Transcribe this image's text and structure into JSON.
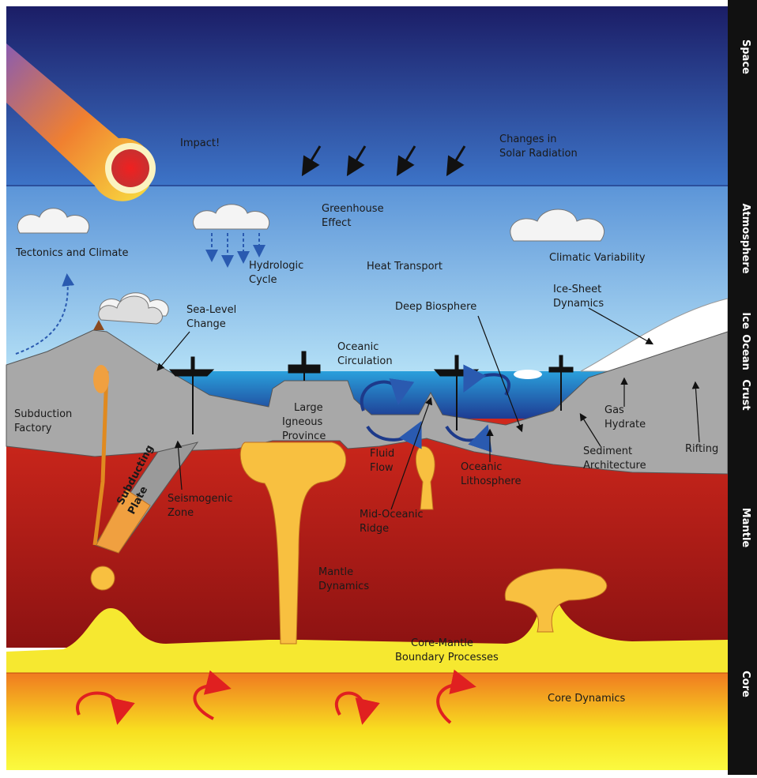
{
  "layers": [
    "Space",
    "Atmosphere",
    "Ice",
    "Ocean",
    "Crust",
    "Mantle",
    "Core"
  ],
  "labels": [
    {
      "lines": [
        "Impact!"
      ]
    },
    {
      "lines": [
        "Changes in",
        "Solar Radiation"
      ]
    },
    {
      "lines": [
        "Greenhouse",
        "Effect"
      ]
    },
    {
      "lines": [
        "Hydrologic",
        "Cycle"
      ]
    },
    {
      "lines": [
        "Tectonics and Climate"
      ]
    },
    {
      "lines": [
        "Heat Transport"
      ]
    },
    {
      "lines": [
        "Climatic Variability"
      ]
    },
    {
      "lines": [
        "Ice-Sheet",
        "Dynamics"
      ]
    },
    {
      "lines": [
        "Deep Biosphere"
      ]
    },
    {
      "lines": [
        "Sea-Level",
        "Change"
      ]
    },
    {
      "lines": [
        "Oceanic",
        "Circulation"
      ]
    },
    {
      "lines": [
        "Subduction",
        "Factory"
      ]
    },
    {
      "lines": [
        "Large",
        "Igneous",
        "Province"
      ]
    },
    {
      "lines": [
        "Fluid",
        "Flow"
      ]
    },
    {
      "lines": [
        "Oceanic",
        "Lithosphere"
      ]
    },
    {
      "lines": [
        "Gas",
        "Hydrate"
      ]
    },
    {
      "lines": [
        "Rifting"
      ]
    },
    {
      "lines": [
        "Sediment",
        "Architecture"
      ]
    },
    {
      "lines": [
        "Seismogenic",
        "Zone"
      ]
    },
    {
      "lines": [
        "Subducting",
        "Plate"
      ]
    },
    {
      "lines": [
        "Mid-Oceanic",
        "Ridge"
      ]
    },
    {
      "lines": [
        "Mantle",
        "Dynamics"
      ]
    },
    {
      "lines": [
        "Core-Mantle",
        "Boundary Processes"
      ]
    },
    {
      "lines": [
        "Core Dynamics"
      ]
    }
  ]
}
